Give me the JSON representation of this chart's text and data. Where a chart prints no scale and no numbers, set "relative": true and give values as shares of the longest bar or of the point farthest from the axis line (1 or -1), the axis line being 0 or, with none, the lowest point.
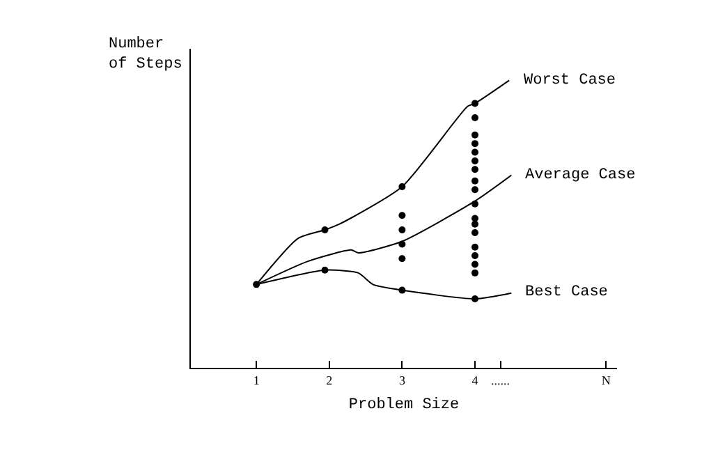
{
  "chart_data": {
    "type": "line",
    "relative": true,
    "xlabel": "Problem Size",
    "ylabel": "Number\nof Steps",
    "xlim": [
      0.1,
      5.95
    ],
    "xticks": [
      1,
      2,
      3,
      4,
      {
        "value": 4.35,
        "label": "......"
      },
      {
        "value": 5.8,
        "label": "N"
      }
    ],
    "grid": false,
    "tick_labels": "x",
    "series": [
      {
        "name": "Worst Case",
        "color": "#000000",
        "x": [
          1,
          1.57,
          1.94,
          2.14,
          3,
          3.9,
          4,
          4.47
        ],
        "values": [
          0.29,
          0.45,
          0.48,
          0.5,
          0.63,
          0.91,
          0.92,
          1
        ]
      },
      {
        "name": "Average Case",
        "color": "#000000",
        "x": [
          1,
          1.7,
          2.3,
          2.4,
          3,
          4,
          4.5
        ],
        "values": [
          0.29,
          0.37,
          0.41,
          0.4,
          0.44,
          0.58,
          0.67
        ]
      },
      {
        "name": "Best Case",
        "color": "#000000",
        "x": [
          1,
          1.94,
          2.4,
          2.6,
          3,
          4,
          4.5
        ],
        "values": [
          0.29,
          0.34,
          0.33,
          0.29,
          0.27,
          0.24,
          0.26
        ]
      },
      {
        "type": "scatter",
        "color": "#000000",
        "marker": "circle",
        "x": [
          1,
          1.94,
          3,
          4,
          1.94,
          3,
          4,
          3,
          3,
          3,
          3,
          4,
          4,
          4,
          4,
          4,
          4,
          4,
          4,
          4,
          4,
          4,
          4,
          4,
          4,
          4,
          4
        ],
        "values": [
          0.29,
          0.48,
          0.63,
          0.92,
          0.34,
          0.27,
          0.24,
          0.53,
          0.48,
          0.43,
          0.38,
          0.87,
          0.81,
          0.78,
          0.75,
          0.72,
          0.69,
          0.65,
          0.62,
          0.57,
          0.52,
          0.5,
          0.47,
          0.42,
          0.39,
          0.36,
          0.33
        ]
      }
    ]
  }
}
